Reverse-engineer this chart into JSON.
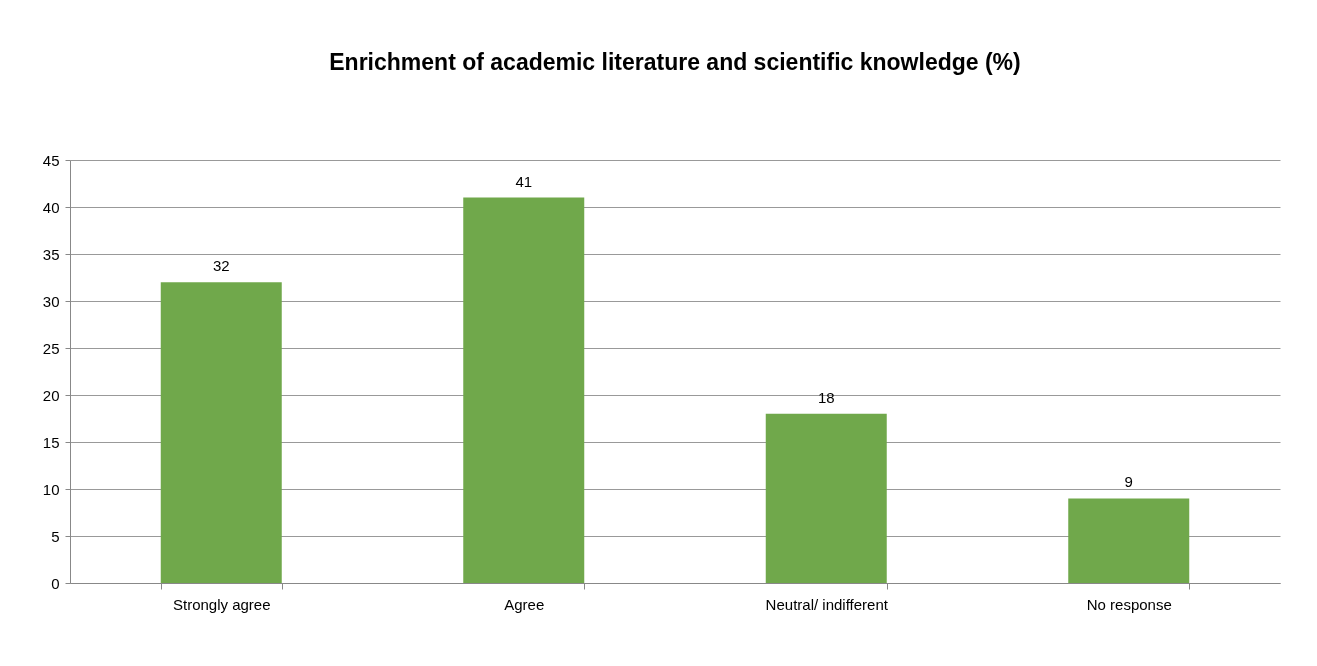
{
  "chart_data": {
    "type": "bar",
    "title": "Enrichment of academic literature and scientific knowledge (%)",
    "categories": [
      "Strongly agree",
      "Agree",
      "Neutral/ indifferent",
      "No response"
    ],
    "values": [
      32,
      41,
      18,
      9
    ],
    "color": "#70a84b",
    "ylim": [
      0,
      45
    ],
    "yticks": [
      0,
      5,
      10,
      15,
      20,
      25,
      30,
      35,
      40,
      45
    ],
    "grid": "y",
    "data_labels": true
  }
}
